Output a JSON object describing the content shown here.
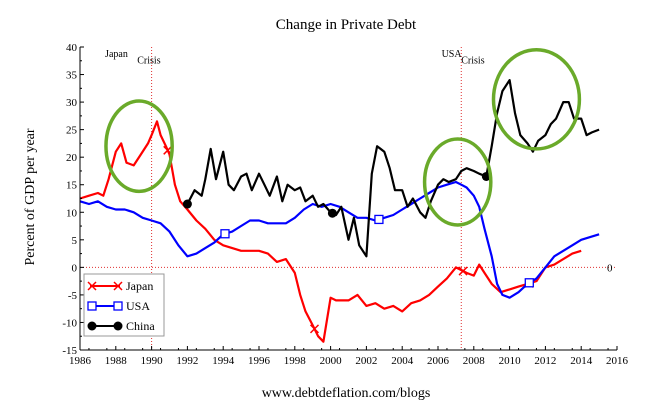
{
  "chart_data": {
    "type": "line",
    "title": "Change in Private Debt",
    "ylabel": "Percent of GDP per year",
    "xlabel": "",
    "footer": "www.debtdeflation.com/blogs",
    "xlim": [
      1986,
      2016
    ],
    "ylim": [
      -15,
      40
    ],
    "xticks": [
      1986,
      1988,
      1990,
      1992,
      1994,
      1996,
      1998,
      2000,
      2002,
      2004,
      2006,
      2008,
      2010,
      2012,
      2014,
      2016
    ],
    "yticks": [
      -15,
      -10,
      -5,
      0,
      5,
      10,
      15,
      20,
      25,
      30,
      35,
      40
    ],
    "zero_label": "0",
    "grid": false,
    "legend_position": "bottom-left",
    "annotations": [
      {
        "text": "Japan",
        "x": 1987.4,
        "y": 38.2
      },
      {
        "text": "Crisis",
        "x": 1989.2,
        "y": 37.0
      },
      {
        "text": "USA",
        "x": 2006.2,
        "y": 38.2
      },
      {
        "text": "Crisis",
        "x": 2007.3,
        "y": 37.0
      }
    ],
    "reference_lines": [
      {
        "axis": "x",
        "value": 1990.0
      },
      {
        "axis": "x",
        "value": 2007.3
      },
      {
        "axis": "y",
        "value": 0
      }
    ],
    "highlight_circles": [
      {
        "cx": 1989.3,
        "cy": 22.0,
        "rx_years": 1.85,
        "ry_units": 8.2
      },
      {
        "cx": 2007.1,
        "cy": 15.5,
        "rx_years": 1.85,
        "ry_units": 7.8
      },
      {
        "cx": 2011.5,
        "cy": 30.5,
        "rx_years": 2.4,
        "ry_units": 9.0
      }
    ],
    "series": [
      {
        "name": "Japan",
        "color": "#ff0000",
        "marker": "x",
        "marker_x": [
          1990.9,
          1999.1,
          2007.4,
          2011.1
        ],
        "x": [
          1986.0,
          1986.5,
          1987.0,
          1987.3,
          1987.6,
          1988.0,
          1988.3,
          1988.6,
          1989.0,
          1989.4,
          1989.8,
          1990.0,
          1990.3,
          1990.5,
          1990.8,
          1991.0,
          1991.3,
          1991.6,
          1992.0,
          1992.5,
          1993.0,
          1993.5,
          1994.0,
          1994.5,
          1995.0,
          1995.5,
          1996.0,
          1996.5,
          1997.0,
          1997.5,
          1998.0,
          1998.3,
          1998.6,
          1999.0,
          1999.3,
          1999.6,
          2000.0,
          2000.3,
          2000.6,
          2001.0,
          2001.5,
          2002.0,
          2002.5,
          2003.0,
          2003.5,
          2004.0,
          2004.5,
          2005.0,
          2005.5,
          2006.0,
          2006.5,
          2007.0,
          2007.3,
          2007.6,
          2008.0,
          2008.3,
          2008.6,
          2009.0,
          2009.5,
          2010.0,
          2010.5,
          2011.0,
          2011.5,
          2012.0,
          2012.5,
          2013.0,
          2013.5,
          2014.0
        ],
        "y": [
          12.5,
          13.0,
          13.5,
          13.0,
          16.0,
          21.0,
          22.5,
          19.0,
          18.5,
          20.5,
          22.5,
          24.0,
          26.5,
          24.0,
          22.0,
          20.5,
          15.0,
          12.0,
          10.5,
          8.5,
          7.0,
          5.0,
          4.0,
          3.5,
          3.0,
          3.0,
          3.0,
          2.5,
          1.0,
          1.5,
          -1.0,
          -5.0,
          -8.0,
          -10.5,
          -12.5,
          -13.5,
          -5.5,
          -6.0,
          -6.0,
          -6.0,
          -5.0,
          -7.0,
          -6.5,
          -7.5,
          -7.0,
          -8.0,
          -6.5,
          -6.0,
          -5.0,
          -3.5,
          -2.0,
          0.0,
          -0.5,
          -1.0,
          -1.5,
          0.5,
          -1.0,
          -3.0,
          -4.5,
          -4.0,
          -3.5,
          -3.0,
          -2.5,
          0.0,
          0.5,
          1.5,
          2.5,
          3.0
        ]
      },
      {
        "name": "USA",
        "color": "#0000ff",
        "marker": "square",
        "marker_x": [
          1994.1,
          2002.7,
          2011.1
        ],
        "x": [
          1986.0,
          1986.5,
          1987.0,
          1987.5,
          1988.0,
          1988.5,
          1989.0,
          1989.5,
          1990.0,
          1990.5,
          1991.0,
          1991.5,
          1992.0,
          1992.5,
          1993.0,
          1993.5,
          1994.0,
          1994.5,
          1995.0,
          1995.5,
          1996.0,
          1996.5,
          1997.0,
          1997.5,
          1998.0,
          1998.5,
          1999.0,
          1999.5,
          2000.0,
          2000.5,
          2001.0,
          2001.5,
          2002.0,
          2002.5,
          2003.0,
          2003.5,
          2004.0,
          2004.5,
          2005.0,
          2005.5,
          2006.0,
          2006.5,
          2007.0,
          2007.3,
          2007.6,
          2008.0,
          2008.3,
          2008.6,
          2009.0,
          2009.3,
          2009.6,
          2010.0,
          2010.5,
          2011.0,
          2011.5,
          2012.0,
          2012.5,
          2013.0,
          2013.5,
          2014.0,
          2014.5,
          2015.0
        ],
        "y": [
          12.0,
          11.5,
          12.0,
          11.0,
          10.5,
          10.5,
          10.0,
          9.0,
          8.5,
          8.0,
          6.5,
          4.0,
          2.0,
          2.5,
          3.5,
          4.5,
          6.0,
          6.5,
          7.5,
          8.5,
          8.5,
          8.0,
          8.0,
          8.0,
          9.0,
          10.5,
          11.5,
          11.0,
          11.5,
          11.0,
          10.0,
          9.0,
          9.0,
          8.5,
          9.0,
          9.5,
          10.5,
          11.5,
          12.5,
          13.5,
          14.5,
          15.0,
          15.5,
          15.0,
          14.5,
          13.0,
          11.0,
          7.0,
          2.0,
          -3.0,
          -5.0,
          -5.5,
          -4.5,
          -3.0,
          -2.0,
          0.0,
          2.0,
          3.0,
          4.0,
          5.0,
          5.5,
          6.0
        ]
      },
      {
        "name": "China",
        "color": "#000000",
        "marker": "circle",
        "marker_x": [
          1992.0,
          2000.1,
          2008.7
        ],
        "x": [
          1992.0,
          1992.4,
          1992.8,
          1993.0,
          1993.3,
          1993.6,
          1994.0,
          1994.3,
          1994.6,
          1995.0,
          1995.3,
          1995.6,
          1996.0,
          1996.3,
          1996.6,
          1997.0,
          1997.3,
          1997.6,
          1998.0,
          1998.3,
          1998.6,
          1999.0,
          1999.3,
          1999.6,
          2000.0,
          2000.3,
          2000.6,
          2001.0,
          2001.3,
          2001.6,
          2002.0,
          2002.3,
          2002.6,
          2003.0,
          2003.3,
          2003.6,
          2004.0,
          2004.3,
          2004.6,
          2005.0,
          2005.3,
          2005.6,
          2006.0,
          2006.3,
          2006.6,
          2007.0,
          2007.3,
          2007.6,
          2008.0,
          2008.3,
          2008.7,
          2009.0,
          2009.3,
          2009.6,
          2010.0,
          2010.3,
          2010.6,
          2011.0,
          2011.3,
          2011.6,
          2012.0,
          2012.3,
          2012.6,
          2013.0,
          2013.3,
          2013.6,
          2014.0,
          2014.3,
          2014.6,
          2015.0
        ],
        "y": [
          11.5,
          14.0,
          13.0,
          16.0,
          21.5,
          16.0,
          21.0,
          15.0,
          14.0,
          16.5,
          17.0,
          14.0,
          17.0,
          15.0,
          13.0,
          16.5,
          12.0,
          15.0,
          14.0,
          14.5,
          12.0,
          13.0,
          11.0,
          11.5,
          10.0,
          9.5,
          11.0,
          5.0,
          9.0,
          4.0,
          2.0,
          17.0,
          22.0,
          21.0,
          18.0,
          14.0,
          14.0,
          11.0,
          12.5,
          10.0,
          9.0,
          12.0,
          15.0,
          16.0,
          15.5,
          16.0,
          17.5,
          18.0,
          17.5,
          17.0,
          16.5,
          22.0,
          28.0,
          32.0,
          34.0,
          28.0,
          24.0,
          22.5,
          21.0,
          23.0,
          24.0,
          26.0,
          27.0,
          30.0,
          30.0,
          27.0,
          27.0,
          24.0,
          24.5,
          25.0
        ]
      }
    ]
  }
}
